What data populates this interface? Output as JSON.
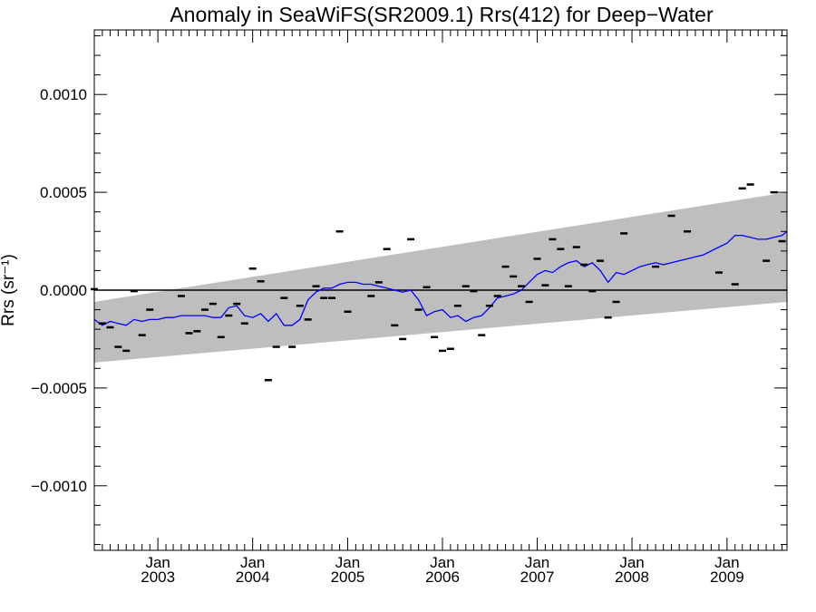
{
  "chart_data": {
    "type": "scatter",
    "title": "Anomaly in SeaWiFS(SR2009.1) Rrs(412) for Deep−Water",
    "ylabel": "Rrs (sr⁻¹)",
    "xlabel": "",
    "xlim": [
      "2002-05-01",
      "2009-08-20"
    ],
    "ylim": [
      -0.00133,
      0.00133
    ],
    "x_ticks": [
      {
        "month": "Jan",
        "year": "2003",
        "x": "2003-01-01"
      },
      {
        "month": "Jan",
        "year": "2004",
        "x": "2004-01-01"
      },
      {
        "month": "Jan",
        "year": "2005",
        "x": "2005-01-01"
      },
      {
        "month": "Jan",
        "year": "2006",
        "x": "2006-01-01"
      },
      {
        "month": "Jan",
        "year": "2007",
        "x": "2007-01-01"
      },
      {
        "month": "Jan",
        "year": "2008",
        "x": "2008-01-01"
      },
      {
        "month": "Jan",
        "year": "2009",
        "x": "2009-01-01"
      }
    ],
    "y_ticks": [
      {
        "value": 0.001,
        "label": "0.0010"
      },
      {
        "value": 0.0005,
        "label": "0.0005"
      },
      {
        "value": 0,
        "label": "0.0000"
      },
      {
        "value": -0.0005,
        "label": "−0.0005"
      },
      {
        "value": -0.001,
        "label": "−0.0010"
      }
    ],
    "zero_line": 0,
    "band": {
      "x": [
        "2002-05-01",
        "2009-08-20"
      ],
      "lower": [
        -0.00037,
        -6e-05
      ],
      "upper": [
        -6e-05,
        0.0005
      ],
      "color": "#bebebe"
    },
    "series": [
      {
        "kind": "points",
        "color": "#000000",
        "x": [
          "2002-05-01",
          "2002-06-01",
          "2002-07-01",
          "2002-08-01",
          "2002-09-01",
          "2002-10-01",
          "2002-11-01",
          "2002-12-01",
          "2003-04-01",
          "2003-05-01",
          "2003-06-01",
          "2003-07-01",
          "2003-08-01",
          "2003-09-01",
          "2003-10-01",
          "2003-11-01",
          "2003-12-01",
          "2004-01-01",
          "2004-02-01",
          "2004-03-01",
          "2004-04-01",
          "2004-05-01",
          "2004-06-01",
          "2004-07-01",
          "2004-08-01",
          "2004-09-01",
          "2004-10-01",
          "2004-11-01",
          "2004-12-01",
          "2005-01-01",
          "2005-04-01",
          "2005-05-01",
          "2005-06-01",
          "2005-07-01",
          "2005-08-01",
          "2005-09-01",
          "2005-10-01",
          "2005-11-01",
          "2005-12-01",
          "2006-01-01",
          "2006-02-01",
          "2006-03-01",
          "2006-04-01",
          "2006-05-01",
          "2006-06-01",
          "2006-07-01",
          "2006-08-01",
          "2006-09-01",
          "2006-10-01",
          "2006-11-01",
          "2006-12-01",
          "2007-01-01",
          "2007-02-01",
          "2007-03-01",
          "2007-04-01",
          "2007-05-01",
          "2007-06-01",
          "2007-07-01",
          "2007-08-01",
          "2007-09-01",
          "2007-10-01",
          "2007-11-01",
          "2007-12-01",
          "2008-04-01",
          "2008-06-01",
          "2008-08-01",
          "2008-12-01",
          "2009-02-01",
          "2009-03-01",
          "2009-04-01",
          "2009-06-01",
          "2009-07-01",
          "2009-08-01"
        ],
        "y": [
          5e-06,
          -0.00017,
          -0.00019,
          -0.00029,
          -0.00031,
          -5e-06,
          -0.00023,
          -0.0001,
          -3e-05,
          -0.00022,
          -0.00021,
          -0.0001,
          -7e-05,
          -0.00024,
          -0.00013,
          -7e-05,
          -0.00017,
          0.00011,
          4.5e-05,
          -0.00046,
          -0.00029,
          -4e-05,
          -0.00029,
          -8e-05,
          -0.00015,
          2e-05,
          -4e-05,
          -4e-05,
          0.0003,
          -0.00011,
          -3e-05,
          4e-05,
          0.00021,
          -0.00018,
          -0.00025,
          0.00026,
          -0.0001,
          1.5e-05,
          -0.00024,
          -0.00031,
          -0.0003,
          -8e-05,
          2e-05,
          -5e-06,
          -0.00023,
          -8e-05,
          -3e-05,
          0.00012,
          7e-05,
          2e-05,
          -6e-05,
          0.00016,
          2.5e-05,
          0.00026,
          0.00021,
          2e-05,
          0.00022,
          0.00013,
          -5e-06,
          0.00015,
          -0.00014,
          -6e-05,
          0.00029,
          0.00012,
          0.00038,
          0.0003,
          9e-05,
          3e-05,
          0.00052,
          0.00054,
          0.00015,
          0.0005,
          0.00025
        ]
      },
      {
        "kind": "line",
        "color": "#0000ff",
        "x": [
          "2002-05-01",
          "2002-06-01",
          "2002-07-01",
          "2002-08-01",
          "2002-09-01",
          "2002-10-01",
          "2002-11-01",
          "2002-12-01",
          "2003-01-01",
          "2003-02-01",
          "2003-03-01",
          "2003-04-01",
          "2003-05-01",
          "2003-06-01",
          "2003-07-01",
          "2003-08-01",
          "2003-09-01",
          "2003-10-01",
          "2003-11-01",
          "2003-12-01",
          "2004-01-01",
          "2004-02-01",
          "2004-03-01",
          "2004-04-01",
          "2004-05-01",
          "2004-06-01",
          "2004-07-01",
          "2004-08-01",
          "2004-09-01",
          "2004-10-01",
          "2004-11-01",
          "2004-12-01",
          "2005-01-01",
          "2005-02-01",
          "2005-03-01",
          "2005-04-01",
          "2005-05-01",
          "2005-06-01",
          "2005-07-01",
          "2005-08-01",
          "2005-09-01",
          "2005-10-01",
          "2005-11-01",
          "2005-12-01",
          "2006-01-01",
          "2006-02-01",
          "2006-03-01",
          "2006-04-01",
          "2006-05-01",
          "2006-06-01",
          "2006-07-01",
          "2006-08-01",
          "2006-09-01",
          "2006-10-01",
          "2006-11-01",
          "2006-12-01",
          "2007-01-01",
          "2007-02-01",
          "2007-03-01",
          "2007-04-01",
          "2007-05-01",
          "2007-06-01",
          "2007-07-01",
          "2007-08-01",
          "2007-09-01",
          "2007-10-01",
          "2007-11-01",
          "2007-12-01",
          "2008-01-01",
          "2008-02-01",
          "2008-03-01",
          "2008-04-01",
          "2008-05-01",
          "2008-06-01",
          "2008-07-01",
          "2008-08-01",
          "2008-09-01",
          "2008-10-01",
          "2008-11-01",
          "2008-12-01",
          "2009-01-01",
          "2009-02-01",
          "2009-03-01",
          "2009-04-01",
          "2009-05-01",
          "2009-06-01",
          "2009-07-01",
          "2009-08-01",
          "2009-08-20"
        ],
        "y": [
          -0.00015,
          -0.00018,
          -0.00016,
          -0.00017,
          -0.00018,
          -0.00015,
          -0.00016,
          -0.00015,
          -0.00015,
          -0.00014,
          -0.00014,
          -0.00013,
          -0.00013,
          -0.00013,
          -0.00013,
          -0.00014,
          -0.00014,
          -9e-05,
          -8e-05,
          -0.00013,
          -0.00014,
          -0.00012,
          -0.00016,
          -0.00012,
          -0.00018,
          -0.00018,
          -0.00015,
          -5e-05,
          -1e-05,
          1e-05,
          1e-05,
          3e-05,
          4e-05,
          4e-05,
          3e-05,
          3e-05,
          2e-05,
          1e-05,
          0.0,
          -1e-05,
          0.0,
          -5e-05,
          -0.00013,
          -0.00011,
          -0.0001,
          -0.00014,
          -0.00013,
          -0.00016,
          -0.00014,
          -0.00013,
          -9e-05,
          -4e-05,
          -3e-05,
          -2e-05,
          0.0,
          4e-05,
          8e-05,
          0.0001,
          9e-05,
          0.00012,
          0.00014,
          0.00015,
          0.00012,
          0.00014,
          0.0001,
          4e-05,
          9e-05,
          8e-05,
          0.0001,
          0.00012,
          0.00013,
          0.00014,
          0.00013,
          0.00014,
          0.00015,
          0.00016,
          0.00017,
          0.00018,
          0.0002,
          0.00022,
          0.00024,
          0.00028,
          0.00028,
          0.00027,
          0.00026,
          0.00026,
          0.00027,
          0.00028,
          0.0003
        ]
      }
    ],
    "grid": false
  }
}
